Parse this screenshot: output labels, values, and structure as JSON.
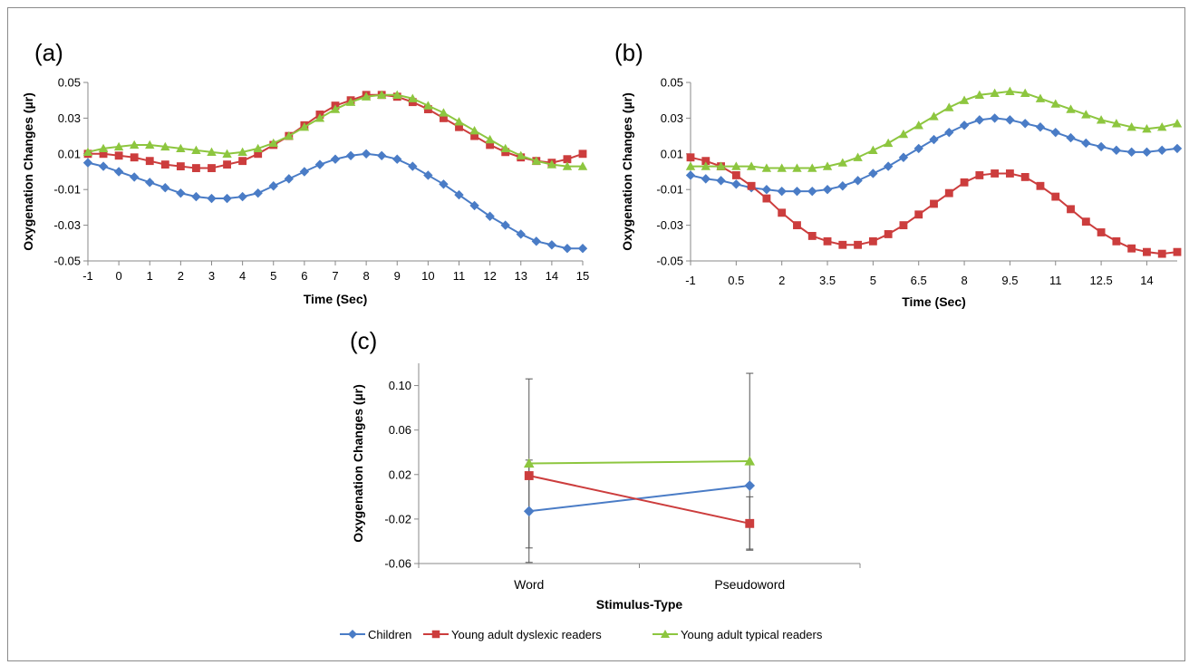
{
  "colors": {
    "children": "#4a7cc6",
    "dyslexic": "#cc3d3d",
    "typical": "#8dc63f",
    "axis": "#888888",
    "text": "#000000"
  },
  "legend": {
    "placement": "bottom-center",
    "items": [
      "Children",
      "Young adult dyslexic readers",
      "Young adult typical readers"
    ]
  },
  "chart_data": [
    {
      "type": "line",
      "panel_label": "(a)",
      "title": "",
      "xlabel": "Time (Sec)",
      "ylabel": "Oxygenation Changes (µr)",
      "ylim": [
        -0.05,
        0.05
      ],
      "yticks": [
        "-0.05",
        "-0.03",
        "-0.01",
        "0.01",
        "0.03",
        "0.05"
      ],
      "xlim": [
        -1,
        15
      ],
      "xticks": [
        "-1",
        "0",
        "1",
        "2",
        "3",
        "4",
        "5",
        "6",
        "7",
        "8",
        "9",
        "10",
        "11",
        "12",
        "13",
        "14",
        "15"
      ],
      "x": [
        -1,
        -0.5,
        0,
        0.5,
        1,
        1.5,
        2,
        2.5,
        3,
        3.5,
        4,
        4.5,
        5,
        5.5,
        6,
        6.5,
        7,
        7.5,
        8,
        8.5,
        9,
        9.5,
        10,
        10.5,
        11,
        11.5,
        12,
        12.5,
        13,
        13.5,
        14,
        14.5,
        15
      ],
      "series": [
        {
          "name": "Children",
          "color_key": "children",
          "marker": "diamond",
          "values": [
            0.005,
            0.003,
            0.0,
            -0.003,
            -0.006,
            -0.009,
            -0.012,
            -0.014,
            -0.015,
            -0.015,
            -0.014,
            -0.012,
            -0.008,
            -0.004,
            0.0,
            0.004,
            0.007,
            0.009,
            0.01,
            0.009,
            0.007,
            0.003,
            -0.002,
            -0.007,
            -0.013,
            -0.019,
            -0.025,
            -0.03,
            -0.035,
            -0.039,
            -0.041,
            -0.043,
            -0.043
          ]
        },
        {
          "name": "Young adult dyslexic readers",
          "color_key": "dyslexic",
          "marker": "square",
          "values": [
            0.01,
            0.01,
            0.009,
            0.008,
            0.006,
            0.004,
            0.003,
            0.002,
            0.002,
            0.004,
            0.006,
            0.01,
            0.015,
            0.02,
            0.026,
            0.032,
            0.037,
            0.04,
            0.043,
            0.043,
            0.042,
            0.039,
            0.035,
            0.03,
            0.025,
            0.02,
            0.015,
            0.011,
            0.008,
            0.006,
            0.005,
            0.007,
            0.01
          ]
        },
        {
          "name": "Young adult typical readers",
          "color_key": "typical",
          "marker": "triangle",
          "values": [
            0.011,
            0.013,
            0.014,
            0.015,
            0.015,
            0.014,
            0.013,
            0.012,
            0.011,
            0.01,
            0.011,
            0.013,
            0.016,
            0.02,
            0.025,
            0.03,
            0.035,
            0.039,
            0.042,
            0.043,
            0.043,
            0.041,
            0.037,
            0.033,
            0.028,
            0.023,
            0.018,
            0.013,
            0.009,
            0.006,
            0.004,
            0.003,
            0.003
          ]
        }
      ]
    },
    {
      "type": "line",
      "panel_label": "(b)",
      "title": "",
      "xlabel": "Time (Sec)",
      "ylabel": "Oxygenation Changes (µr)",
      "ylim": [
        -0.05,
        0.05
      ],
      "yticks": [
        "-0.05",
        "-0.03",
        "-0.01",
        "0.01",
        "0.03",
        "0.05"
      ],
      "xlim": [
        -1,
        15
      ],
      "xticks": [
        "-1",
        "0.5",
        "2",
        "3.5",
        "5",
        "6.5",
        "8",
        "9.5",
        "11",
        "12.5",
        "14"
      ],
      "x": [
        -1,
        -0.5,
        0,
        0.5,
        1,
        1.5,
        2,
        2.5,
        3,
        3.5,
        4,
        4.5,
        5,
        5.5,
        6,
        6.5,
        7,
        7.5,
        8,
        8.5,
        9,
        9.5,
        10,
        10.5,
        11,
        11.5,
        12,
        12.5,
        13,
        13.5,
        14,
        14.5,
        15
      ],
      "series": [
        {
          "name": "Children",
          "color_key": "children",
          "marker": "diamond",
          "values": [
            -0.002,
            -0.004,
            -0.005,
            -0.007,
            -0.009,
            -0.01,
            -0.011,
            -0.011,
            -0.011,
            -0.01,
            -0.008,
            -0.005,
            -0.001,
            0.003,
            0.008,
            0.013,
            0.018,
            0.022,
            0.026,
            0.029,
            0.03,
            0.029,
            0.027,
            0.025,
            0.022,
            0.019,
            0.016,
            0.014,
            0.012,
            0.011,
            0.011,
            0.012,
            0.013
          ]
        },
        {
          "name": "Young adult dyslexic readers",
          "color_key": "dyslexic",
          "marker": "square",
          "values": [
            0.008,
            0.006,
            0.003,
            -0.002,
            -0.008,
            -0.015,
            -0.023,
            -0.03,
            -0.036,
            -0.039,
            -0.041,
            -0.041,
            -0.039,
            -0.035,
            -0.03,
            -0.024,
            -0.018,
            -0.012,
            -0.006,
            -0.002,
            -0.001,
            -0.001,
            -0.003,
            -0.008,
            -0.014,
            -0.021,
            -0.028,
            -0.034,
            -0.039,
            -0.043,
            -0.045,
            -0.046,
            -0.045
          ]
        },
        {
          "name": "Young adult typical readers",
          "color_key": "typical",
          "marker": "triangle",
          "values": [
            0.003,
            0.003,
            0.003,
            0.003,
            0.003,
            0.002,
            0.002,
            0.002,
            0.002,
            0.003,
            0.005,
            0.008,
            0.012,
            0.016,
            0.021,
            0.026,
            0.031,
            0.036,
            0.04,
            0.043,
            0.044,
            0.045,
            0.044,
            0.041,
            0.038,
            0.035,
            0.032,
            0.029,
            0.027,
            0.025,
            0.024,
            0.025,
            0.027
          ]
        }
      ]
    },
    {
      "type": "line",
      "panel_label": "(c)",
      "title": "",
      "xlabel": "Stimulus-Type",
      "ylabel": "Oxygenation Changes (µr)",
      "ylim": [
        -0.06,
        0.12
      ],
      "yticks": [
        "-0.06",
        "-0.02",
        "0.02",
        "0.06",
        "0.10"
      ],
      "categories": [
        "Word",
        "Pseudoword"
      ],
      "series": [
        {
          "name": "Children",
          "color_key": "children",
          "marker": "diamond",
          "values": [
            -0.013,
            0.01
          ],
          "error": [
            0.046,
            0.0
          ]
        },
        {
          "name": "Young adult dyslexic readers",
          "color_key": "dyslexic",
          "marker": "square",
          "values": [
            0.019,
            -0.024
          ],
          "error": [
            0.0,
            0.024
          ]
        },
        {
          "name": "Young adult typical readers",
          "color_key": "typical",
          "marker": "triangle",
          "values": [
            0.03,
            0.032
          ],
          "error": [
            0.076,
            0.079
          ]
        }
      ]
    }
  ]
}
